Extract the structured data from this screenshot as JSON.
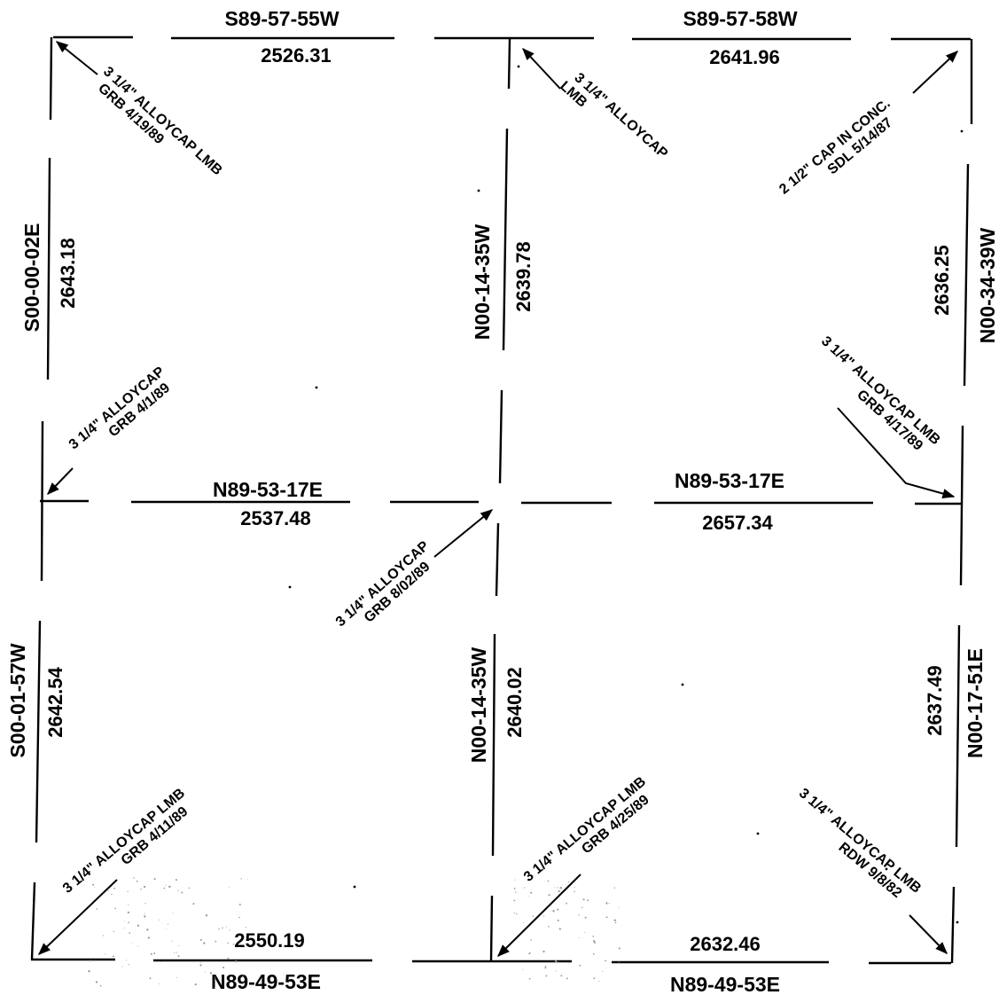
{
  "top_left": {
    "bearing": "S89-57-55W",
    "distance": "2526.31"
  },
  "top_right": {
    "bearing": "S89-57-58W",
    "distance": "2641.96"
  },
  "mid_left": {
    "bearing": "N89-53-17E",
    "distance": "2537.48"
  },
  "mid_right": {
    "bearing": "N89-53-17E",
    "distance": "2657.34"
  },
  "bottom_left": {
    "bearing": "N89-49-53E",
    "distance": "2550.19"
  },
  "bottom_right": {
    "bearing": "N89-49-53E",
    "distance": "2632.46"
  },
  "west_upper": {
    "bearing": "S00-00-02E",
    "distance": "2643.18"
  },
  "west_lower": {
    "bearing": "S00-01-57W",
    "distance": "2642.54"
  },
  "center_upper": {
    "bearing": "N00-14-35W",
    "distance": "2639.78"
  },
  "center_lower": {
    "bearing": "N00-14-35W",
    "distance": "2640.02"
  },
  "east_upper": {
    "bearing": "N00-34-39W",
    "distance": "2636.25"
  },
  "east_lower": {
    "bearing": "N00-17-51E",
    "distance": "2637.49"
  },
  "monuments": {
    "nw": {
      "line1": "3 1/4\" ALLOYCAP LMB",
      "line2": "GRB 4/19/89"
    },
    "n_center": {
      "line1": "3 1/4\" ALLOYCAP",
      "line2": "LMB"
    },
    "ne": {
      "line1": "2 1/2\" CAP IN CONC.",
      "line2": "SDL 5/14/87"
    },
    "w_center": {
      "line1": "3 1/4\" ALLOYCAP",
      "line2": "GRB 4/1/89"
    },
    "center": {
      "line1": "3 1/4\" ALLOYCAP",
      "line2": "GRB 8/02/89"
    },
    "e_center": {
      "line1": "3 1/4\" ALLOYCAP LMB",
      "line2": "GRB 4/17/89"
    },
    "sw": {
      "line1": "3 1/4\" ALLOYCAP LMB",
      "line2": "GRB 4/11/89"
    },
    "s_center": {
      "line1": "3 1/4\" ALLOYCAP LMB",
      "line2": "GRB 4/25/89"
    },
    "se": {
      "line1": "3 1/4\" ALLOYCAP LMB",
      "line2": "RDW 9/8/82"
    }
  }
}
